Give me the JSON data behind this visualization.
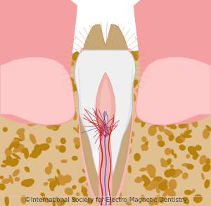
{
  "background_color": "#ffffff",
  "caption": "©International Society for Electro-Magnetic Dentistry",
  "caption_fontsize": 6.2,
  "caption_color": "#444444",
  "colors": {
    "enamel": "#efefef",
    "enamel_highlight": "#ffffff",
    "enamel_shadow": "#cccccc",
    "enamel_edge": "#bbbbbb",
    "dentin": "#c8a878",
    "dentin_lines": "#b89050",
    "pulp": "#f0b0a8",
    "pulp_inner": "#fad0c8",
    "gum": "#f5a0a0",
    "gum_light": "#fcc8c8",
    "gum_dark": "#e88888",
    "bone_bg": "#e0c090",
    "bone_blob": "#b8820a",
    "bone_blob2": "#c89030",
    "pdl": "#f5b8b8",
    "pdl_lines": "#e89090",
    "nerve_red": "#cc2222",
    "nerve_red2": "#e03030",
    "nerve_blue": "#3355cc",
    "root_canal_pink": "#f0b0a8",
    "root_canal_white": "#fce8e0",
    "outline_gray": "#aaaaaa",
    "outline_dark": "#888888"
  }
}
